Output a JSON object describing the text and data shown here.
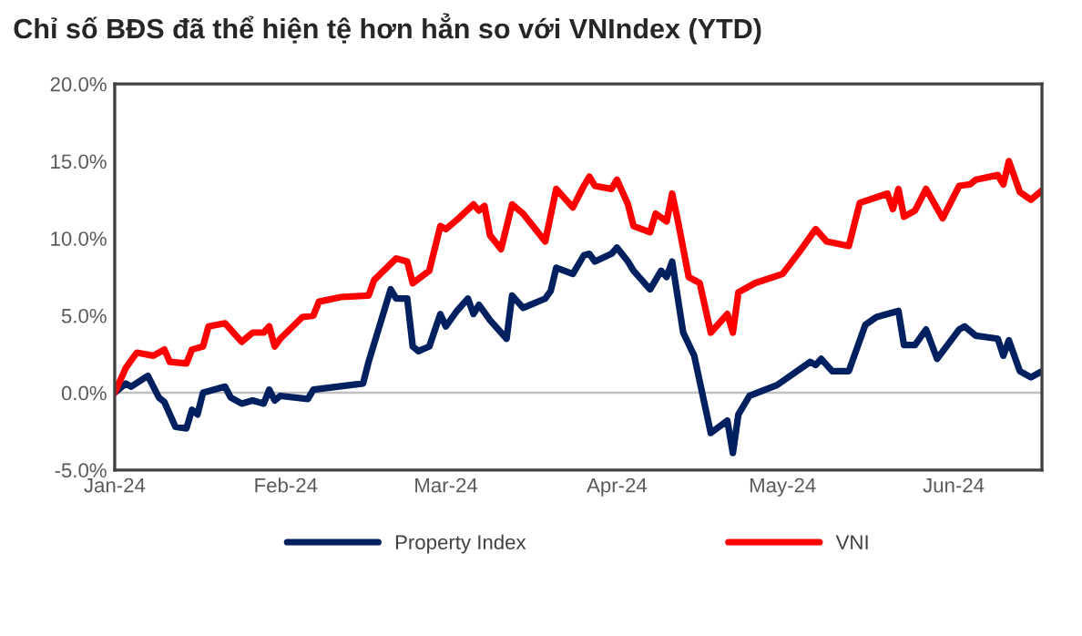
{
  "chart_data": {
    "type": "line",
    "title": "Chỉ số BĐS đã thể hiện tệ hơn hẳn so với VNIndex (YTD)",
    "series": [
      {
        "name": "Property Index",
        "color": "#002060",
        "x": [
          "2024-01-01",
          "2024-01-03",
          "2024-01-04",
          "2024-01-07",
          "2024-01-09",
          "2024-01-10",
          "2024-01-12",
          "2024-01-14",
          "2024-01-15",
          "2024-01-16",
          "2024-01-17",
          "2024-01-21",
          "2024-01-22",
          "2024-01-24",
          "2024-01-26",
          "2024-01-28",
          "2024-01-29",
          "2024-01-30",
          "2024-01-31",
          "2024-02-05",
          "2024-02-06",
          "2024-02-15",
          "2024-02-16",
          "2024-02-20",
          "2024-02-21",
          "2024-02-23",
          "2024-02-24",
          "2024-02-25",
          "2024-02-27",
          "2024-02-29",
          "2024-03-01",
          "2024-03-03",
          "2024-03-05",
          "2024-03-06",
          "2024-03-07",
          "2024-03-09",
          "2024-03-12",
          "2024-03-13",
          "2024-03-15",
          "2024-03-19",
          "2024-03-20",
          "2024-03-21",
          "2024-03-24",
          "2024-03-26",
          "2024-03-27",
          "2024-03-28",
          "2024-03-31",
          "2024-04-01",
          "2024-04-03",
          "2024-04-04",
          "2024-04-07",
          "2024-04-09",
          "2024-04-10",
          "2024-04-11",
          "2024-04-13",
          "2024-04-15",
          "2024-04-18",
          "2024-04-21",
          "2024-04-22",
          "2024-04-23",
          "2024-04-25",
          "2024-04-30",
          "2024-05-06",
          "2024-05-07",
          "2024-05-08",
          "2024-05-10",
          "2024-05-13",
          "2024-05-16",
          "2024-05-18",
          "2024-05-22",
          "2024-05-23",
          "2024-05-25",
          "2024-05-27",
          "2024-05-29",
          "2024-06-02",
          "2024-06-03",
          "2024-06-05",
          "2024-06-09",
          "2024-06-10",
          "2024-06-11",
          "2024-06-13",
          "2024-06-15",
          "2024-06-17"
        ],
        "values": [
          0,
          0.6,
          0.4,
          1.1,
          -0.3,
          -0.6,
          -2.2,
          -2.3,
          -1.1,
          -1.4,
          0,
          0.4,
          -0.3,
          -0.7,
          -0.5,
          -0.7,
          0.2,
          -0.5,
          -0.2,
          -0.4,
          0.2,
          0.6,
          2.0,
          6.7,
          6.1,
          6.1,
          3.0,
          2.7,
          3.0,
          5.1,
          4.3,
          5.3,
          6.1,
          5.1,
          5.7,
          4.7,
          3.5,
          6.3,
          5.5,
          6.1,
          6.6,
          8.1,
          7.7,
          8.9,
          9.0,
          8.5,
          9.0,
          9.4,
          8.5,
          7.9,
          6.7,
          7.9,
          7.5,
          8.5,
          3.9,
          2.4,
          -2.6,
          -1.8,
          -3.9,
          -1.4,
          -0.2,
          0.5,
          2.0,
          1.8,
          2.2,
          1.4,
          1.4,
          4.4,
          4.9,
          5.3,
          3.1,
          3.1,
          4.1,
          2.2,
          4.1,
          4.3,
          3.7,
          3.5,
          2.4,
          3.4,
          1.4,
          1.0,
          1.4
        ]
      },
      {
        "name": "VNI",
        "color": "#ff0000",
        "x": [
          "2024-01-01",
          "2024-01-03",
          "2024-01-05",
          "2024-01-08",
          "2024-01-10",
          "2024-01-11",
          "2024-01-14",
          "2024-01-15",
          "2024-01-17",
          "2024-01-18",
          "2024-01-21",
          "2024-01-24",
          "2024-01-26",
          "2024-01-28",
          "2024-01-29",
          "2024-01-30",
          "2024-01-31",
          "2024-02-04",
          "2024-02-06",
          "2024-02-07",
          "2024-02-11",
          "2024-02-16",
          "2024-02-17",
          "2024-02-21",
          "2024-02-23",
          "2024-02-24",
          "2024-02-27",
          "2024-02-29",
          "2024-03-01",
          "2024-03-03",
          "2024-03-06",
          "2024-03-07",
          "2024-03-08",
          "2024-03-09",
          "2024-03-11",
          "2024-03-13",
          "2024-03-15",
          "2024-03-19",
          "2024-03-21",
          "2024-03-24",
          "2024-03-26",
          "2024-03-27",
          "2024-03-28",
          "2024-03-31",
          "2024-04-01",
          "2024-04-03",
          "2024-04-04",
          "2024-04-07",
          "2024-04-08",
          "2024-04-10",
          "2024-04-11",
          "2024-04-12",
          "2024-04-14",
          "2024-04-16",
          "2024-04-18",
          "2024-04-21",
          "2024-04-22",
          "2024-04-23",
          "2024-04-26",
          "2024-05-01",
          "2024-05-04",
          "2024-05-07",
          "2024-05-09",
          "2024-05-13",
          "2024-05-15",
          "2024-05-20",
          "2024-05-21",
          "2024-05-22",
          "2024-05-23",
          "2024-05-25",
          "2024-05-27",
          "2024-05-30",
          "2024-06-02",
          "2024-06-04",
          "2024-06-05",
          "2024-06-09",
          "2024-06-10",
          "2024-06-11",
          "2024-06-13",
          "2024-06-15",
          "2024-06-17"
        ],
        "values": [
          0,
          1.6,
          2.6,
          2.4,
          2.8,
          2.0,
          1.9,
          2.8,
          3.0,
          4.3,
          4.5,
          3.3,
          3.9,
          3.9,
          4.3,
          3.0,
          3.5,
          4.9,
          5.0,
          5.9,
          6.2,
          6.3,
          7.3,
          8.7,
          8.5,
          7.1,
          7.9,
          10.8,
          10.6,
          11.2,
          12.2,
          11.8,
          12.1,
          10.2,
          9.3,
          12.2,
          11.6,
          9.8,
          13.2,
          12.0,
          13.4,
          14.0,
          13.4,
          13.2,
          13.8,
          12.2,
          10.8,
          10.4,
          11.6,
          11.1,
          12.9,
          11.2,
          7.5,
          7.1,
          3.9,
          5.1,
          3.9,
          6.5,
          7.1,
          7.7,
          9.1,
          10.6,
          9.8,
          9.5,
          12.3,
          12.9,
          11.9,
          13.2,
          11.4,
          11.8,
          13.2,
          11.3,
          13.4,
          13.5,
          13.8,
          14.1,
          13.5,
          15.0,
          13.0,
          12.5,
          13.1
        ]
      }
    ],
    "xlim": [
      "2024-01-01",
      "2024-06-17"
    ],
    "xticks": [
      {
        "value": "2024-01-01",
        "label": "Jan-24"
      },
      {
        "value": "2024-02-01",
        "label": "Feb-24"
      },
      {
        "value": "2024-03-01",
        "label": "Mar-24"
      },
      {
        "value": "2024-04-01",
        "label": "Apr-24"
      },
      {
        "value": "2024-05-01",
        "label": "May-24"
      },
      {
        "value": "2024-06-01",
        "label": "Jun-24"
      }
    ],
    "ylim": [
      -5,
      20
    ],
    "yticks": [
      {
        "value": -5,
        "label": "-5.0%"
      },
      {
        "value": 0,
        "label": "0.0%"
      },
      {
        "value": 5,
        "label": "5.0%"
      },
      {
        "value": 10,
        "label": "10.0%"
      },
      {
        "value": 15,
        "label": "15.0%"
      },
      {
        "value": 20,
        "label": "20.0%"
      }
    ],
    "ref_lines": [
      {
        "axis": "y",
        "value": 0,
        "color": "#bfbfbf"
      }
    ],
    "grid": false,
    "legend": "bottom",
    "marker": "none",
    "line_style": "solid"
  }
}
